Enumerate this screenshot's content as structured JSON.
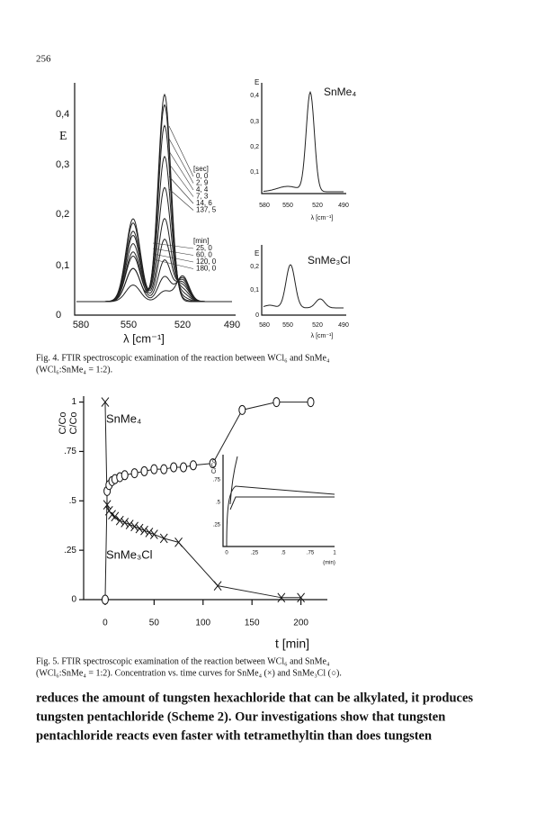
{
  "page_number": "256",
  "figure4": {
    "main": {
      "y_label": "E",
      "yticks": [
        "0,4",
        "0,3",
        "0,2",
        "0,1",
        "0"
      ],
      "xticks": [
        "580",
        "550",
        "520",
        "490"
      ],
      "x_label": "λ [cm⁻¹]",
      "legend_sec_title": "[sec]",
      "legend_sec": [
        "0, 0",
        "2, 9",
        "4, 4",
        "7, 3",
        "14, 6",
        "137, 5"
      ],
      "legend_min_title": "[min]",
      "legend_min": [
        "25, 0",
        "60, 0",
        "120, 0",
        "180, 0"
      ]
    },
    "inset_top": {
      "y_label": "E",
      "yticks": [
        "0,4",
        "0,3",
        "0,2",
        "0,1"
      ],
      "xticks": [
        "580",
        "550",
        "520",
        "490"
      ],
      "x_label": "λ [cm⁻¹]",
      "label": "SnMe₄"
    },
    "inset_bottom": {
      "y_label": "E",
      "yticks": [
        "0,2",
        "0,1",
        "0"
      ],
      "xticks": [
        "580",
        "550",
        "520",
        "490"
      ],
      "x_label": "λ [cm⁻¹]",
      "label": "SnMe₃Cl"
    }
  },
  "figure4_caption": [
    "Fig. 4. FTIR spectroscopic examination of the reaction between WCl₆ and SnMe₄",
    "(WCl₆:SnMe₄ = 1:2)."
  ],
  "chart_data": {
    "type": "scatter",
    "y_label": "C/Co",
    "x_label": "t [min]",
    "series": [
      {
        "name": "SnMe₄",
        "marker": "x",
        "x": [
          0,
          2,
          4,
          7,
          10,
          15,
          20,
          25,
          30,
          35,
          40,
          45,
          50,
          60,
          75,
          115,
          180,
          200
        ],
        "values": [
          1,
          0.48,
          0.45,
          0.43,
          0.42,
          0.4,
          0.39,
          0.38,
          0.37,
          0.36,
          0.35,
          0.34,
          0.33,
          0.31,
          0.29,
          0.07,
          0.01,
          0.01
        ]
      },
      {
        "name": "SnMe₃Cl",
        "marker": "o",
        "x": [
          0,
          2,
          4,
          7,
          10,
          15,
          20,
          30,
          40,
          50,
          60,
          70,
          80,
          90,
          110,
          140,
          175,
          210
        ],
        "values": [
          0,
          0.55,
          0.58,
          0.6,
          0.61,
          0.62,
          0.63,
          0.64,
          0.65,
          0.66,
          0.66,
          0.67,
          0.67,
          0.68,
          0.69,
          0.96,
          1,
          1
        ]
      }
    ],
    "xlim": [
      -22,
      227
    ],
    "xticks": [
      0,
      50,
      100,
      150,
      200
    ],
    "ylim": [
      0,
      1.03
    ],
    "yticks": [
      1,
      {
        "value": 0.75,
        "label": ".75"
      },
      {
        "value": 0.5,
        "label": ".5"
      },
      {
        "value": 0.25,
        "label": ".25"
      },
      0
    ]
  },
  "figure5_inset": {
    "y_label": "C/Co",
    "yticks": [
      ".75",
      ".5",
      ".25"
    ],
    "xticks": [
      "0",
      ".25",
      ".5",
      ".75",
      "1"
    ],
    "x_unit": "(min)"
  },
  "figure5_caption": [
    "Fig. 5. FTIR spectroscopic examination of the reaction between WCl₆ and SnMe₄",
    "(WCl₆:SnMe₄ = 1:2). Concentration vs. time curves for SnMe₄ (×) and SnMe₃Cl (○)."
  ],
  "body_text": [
    "reduces the amount of tungsten hexachloride that can be alkylated, it produces",
    "tungsten pentachloride (Scheme 2). Our investigations show that tungsten",
    "pentachloride reacts even faster with tetramethyltin than does tungsten"
  ]
}
